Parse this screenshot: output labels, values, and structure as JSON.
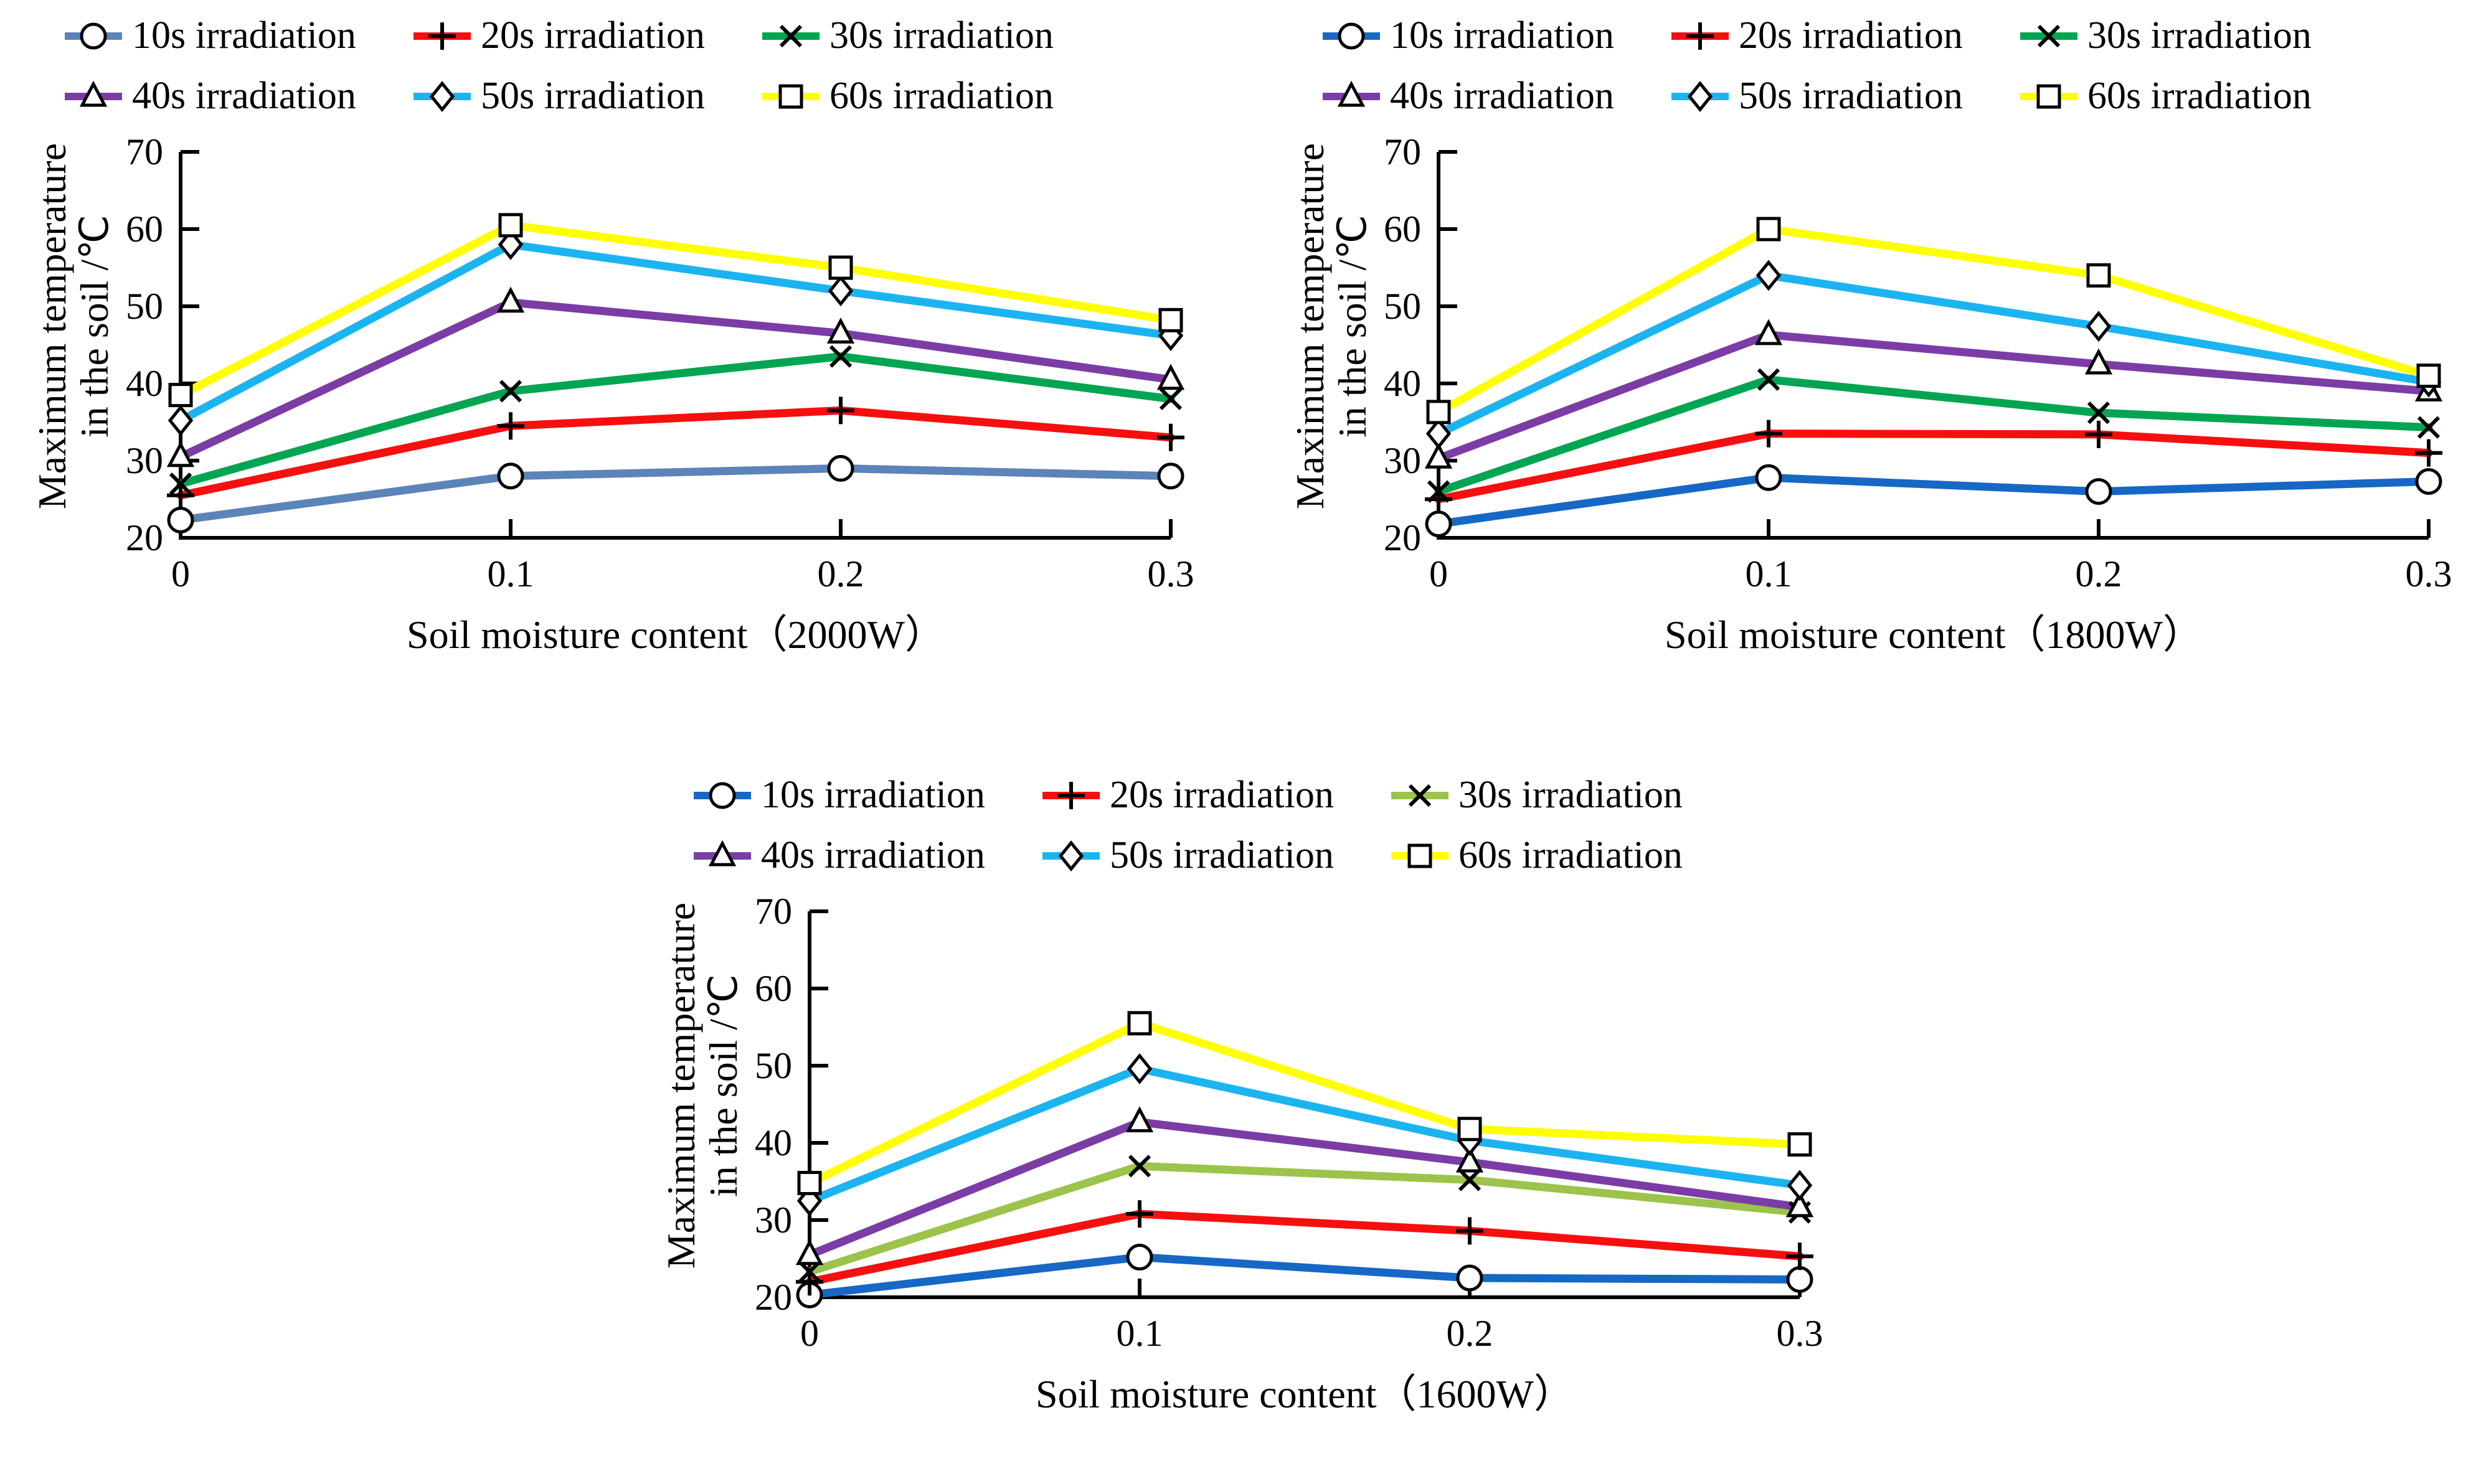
{
  "figure": {
    "background": "#FFFFFF"
  },
  "chart_data": [
    {
      "type": "line",
      "title": "",
      "xlabel": "Soil moisture content（2000W）",
      "ylabel": "Maximum temperature in the soil /℃",
      "ylabel_lines": [
        "Maximum  temperature",
        "in the soil /℃"
      ],
      "categories": [
        "0",
        "0.1",
        "0.2",
        "0.3"
      ],
      "y_ticks": [
        20,
        30,
        40,
        50,
        60,
        70
      ],
      "ylim": [
        20,
        70
      ],
      "grid": false,
      "legend_position": "top",
      "series": [
        {
          "name": "10s irradiation",
          "marker": "circle",
          "color": "#5B84B8",
          "values": [
            22.3,
            28.0,
            29.0,
            28.0
          ]
        },
        {
          "name": "20s irradiation",
          "marker": "plus",
          "color": "#F5100F",
          "values": [
            25.5,
            34.5,
            36.5,
            33.0
          ]
        },
        {
          "name": "30s irradiation",
          "marker": "x",
          "color": "#00A551",
          "values": [
            27.0,
            39.0,
            43.5,
            38.0
          ]
        },
        {
          "name": "40s irradiation",
          "marker": "triangle",
          "color": "#7B3DA5",
          "values": [
            30.5,
            50.5,
            46.5,
            40.5
          ]
        },
        {
          "name": "50s irradiation",
          "marker": "diamond",
          "color": "#1CB4F0",
          "values": [
            35.2,
            58.0,
            52.0,
            46.2
          ]
        },
        {
          "name": "60s irradiation",
          "marker": "square",
          "color": "#FFFF00",
          "values": [
            38.5,
            60.5,
            55.0,
            48.2
          ]
        }
      ]
    },
    {
      "type": "line",
      "title": "",
      "xlabel": "Soil moisture content（1800W）",
      "ylabel": "Maximum temperature in the soil /℃",
      "ylabel_lines": [
        "Maximum  temperature",
        "in the soil /℃"
      ],
      "categories": [
        "0",
        "0.1",
        "0.2",
        "0.3"
      ],
      "y_ticks": [
        20,
        30,
        40,
        50,
        60,
        70
      ],
      "ylim": [
        20,
        70
      ],
      "grid": false,
      "legend_position": "top",
      "series": [
        {
          "name": "10s irradiation",
          "marker": "circle",
          "color": "#1668C4",
          "values": [
            21.8,
            27.8,
            26.0,
            27.3
          ]
        },
        {
          "name": "20s irradiation",
          "marker": "plus",
          "color": "#F5100F",
          "values": [
            25.0,
            33.5,
            33.4,
            31.0
          ]
        },
        {
          "name": "30s irradiation",
          "marker": "x",
          "color": "#00A551",
          "values": [
            26.0,
            40.5,
            36.2,
            34.3
          ]
        },
        {
          "name": "40s irradiation",
          "marker": "triangle",
          "color": "#7B3DA5",
          "values": [
            30.3,
            46.3,
            42.5,
            39.0
          ]
        },
        {
          "name": "50s irradiation",
          "marker": "diamond",
          "color": "#1CB4F0",
          "values": [
            33.5,
            54.0,
            47.4,
            40.2
          ]
        },
        {
          "name": "60s irradiation",
          "marker": "square",
          "color": "#FFFF00",
          "values": [
            36.3,
            60.0,
            54.0,
            41.0
          ]
        }
      ]
    },
    {
      "type": "line",
      "title": "",
      "xlabel": "Soil moisture content（1600W）",
      "ylabel": "Maximum temperature in the soil /℃",
      "ylabel_lines": [
        "Maximum  temperature",
        "in the soil /℃"
      ],
      "categories": [
        "0",
        "0.1",
        "0.2",
        "0.3"
      ],
      "y_ticks": [
        20,
        30,
        40,
        50,
        60,
        70
      ],
      "ylim": [
        20,
        70
      ],
      "grid": false,
      "legend_position": "top",
      "series": [
        {
          "name": "10s irradiation",
          "marker": "circle",
          "color": "#1668C4",
          "values": [
            20.3,
            25.2,
            22.5,
            22.3
          ]
        },
        {
          "name": "20s irradiation",
          "marker": "plus",
          "color": "#F5100F",
          "values": [
            22.0,
            30.8,
            28.6,
            25.3
          ]
        },
        {
          "name": "30s irradiation",
          "marker": "x",
          "color": "#9CC34B",
          "values": [
            23.3,
            37.0,
            35.2,
            31.0
          ]
        },
        {
          "name": "40s irradiation",
          "marker": "triangle",
          "color": "#7B3DA5",
          "values": [
            25.5,
            42.7,
            37.5,
            31.7
          ]
        },
        {
          "name": "50s irradiation",
          "marker": "diamond",
          "color": "#1CB4F0",
          "values": [
            32.5,
            49.6,
            40.3,
            34.5
          ]
        },
        {
          "name": "60s irradiation",
          "marker": "square",
          "color": "#FFFF00",
          "values": [
            34.8,
            55.5,
            41.8,
            39.8
          ]
        }
      ]
    }
  ]
}
